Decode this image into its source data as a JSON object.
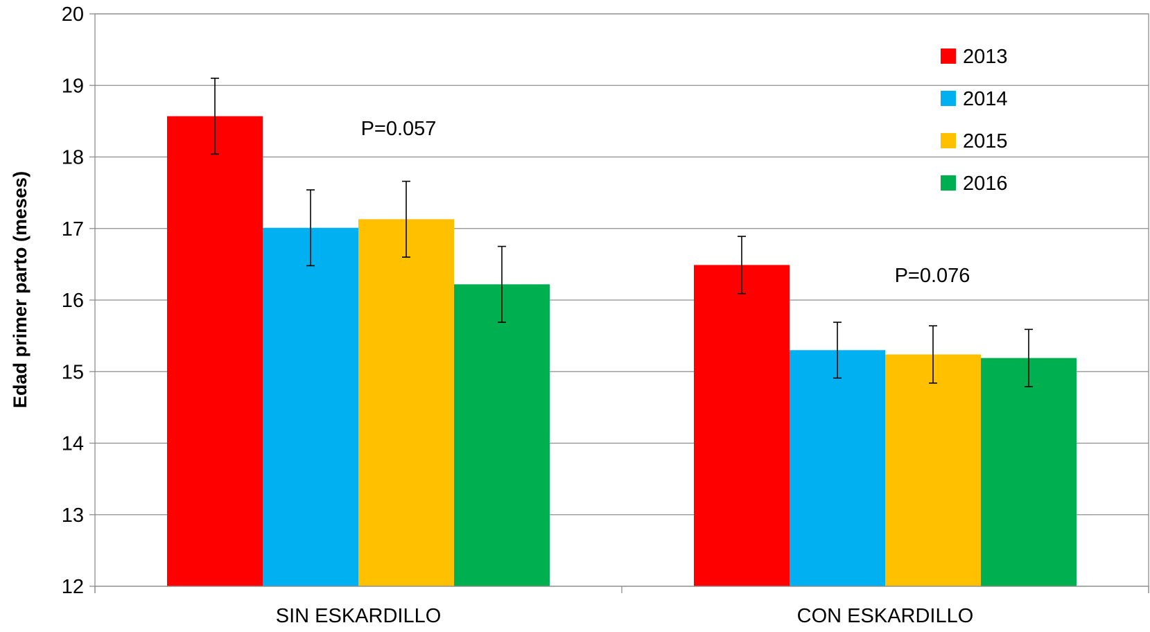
{
  "chart_data": {
    "type": "bar",
    "title": "",
    "xlabel": "",
    "ylabel": "Edad primer parto (meses)",
    "ylim": [
      12,
      20
    ],
    "yticks": [
      12,
      13,
      14,
      15,
      16,
      17,
      18,
      19,
      20
    ],
    "grid": true,
    "legend_position": "top-right",
    "categories": [
      "SIN ESKARDILLO",
      "CON ESKARDILLO"
    ],
    "series": [
      {
        "name": "2013",
        "color": "#FF0000",
        "values": [
          18.57,
          16.49
        ],
        "error": [
          0.53,
          0.4
        ]
      },
      {
        "name": "2014",
        "color": "#00B0F0",
        "values": [
          17.01,
          15.3
        ],
        "error": [
          0.53,
          0.39
        ]
      },
      {
        "name": "2015",
        "color": "#FFC000",
        "values": [
          17.13,
          15.24
        ],
        "error": [
          0.53,
          0.4
        ]
      },
      {
        "name": "2016",
        "color": "#00B050",
        "values": [
          16.22,
          15.19
        ],
        "error": [
          0.53,
          0.4
        ]
      }
    ],
    "annotations": [
      {
        "text": "P=0.057",
        "category": 0
      },
      {
        "text": "P=0.076",
        "category": 1
      }
    ]
  }
}
